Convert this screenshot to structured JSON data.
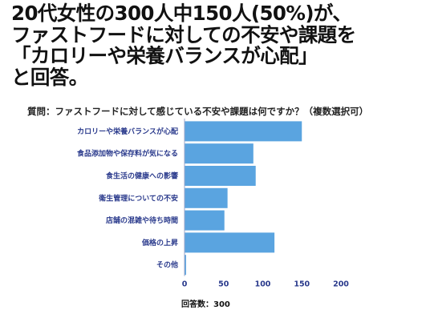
{
  "headline": {
    "lines": [
      "20代女性の300人中150人(50%)が、",
      "ファストフードに対しての不安や課題を",
      "「カロリーや栄養バランスが心配」",
      "と回答。"
    ]
  },
  "question": "質問：ファストフードに対して感じている不安や課題は何ですか？（複数選択可）",
  "colors": {
    "bar": "#5aa4e0",
    "label": "#2a3a8c",
    "axis": "#9aa6c8"
  },
  "chart_data": {
    "type": "bar",
    "orientation": "horizontal",
    "categories": [
      "カロリーや栄養バランスが心配",
      "食品添加物や保存料が気になる",
      "食生活の健康への影響",
      "衛生管理についての不安",
      "店舗の混雑や待ち時間",
      "価格の上昇",
      "その他"
    ],
    "values": [
      150,
      88,
      91,
      55,
      51,
      115,
      2
    ],
    "xlabel": "回答数：300",
    "xlim": [
      0,
      200
    ],
    "xticks": [
      0,
      50,
      100,
      150,
      200
    ],
    "grid": false
  }
}
